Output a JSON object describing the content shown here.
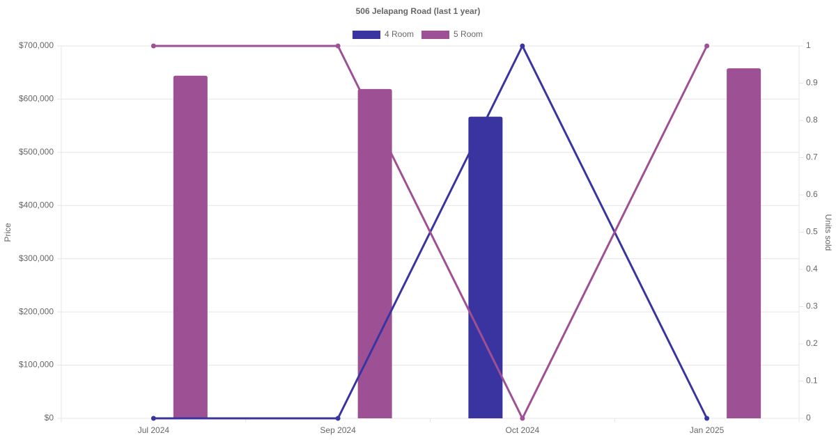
{
  "chart_data": {
    "type": "bar-line",
    "title": "506 Jelapang Road (last 1 year)",
    "categories": [
      "Jul 2024",
      "Sep 2024",
      "Oct 2024",
      "Jan 2025"
    ],
    "series": [
      {
        "name": "4 Room",
        "color": "#3a34a0",
        "values": [
          null,
          null,
          567000,
          null
        ],
        "units_sold": [
          0,
          0,
          1,
          0
        ]
      },
      {
        "name": "5 Room",
        "color": "#9e5094",
        "values": [
          644000,
          619000,
          null,
          658000
        ],
        "units_sold": [
          1,
          1,
          0,
          1
        ]
      }
    ],
    "y_label": "Price",
    "y2_label": "Units sold",
    "ylim": [
      0,
      700000
    ],
    "yticks": [
      {
        "value": 0,
        "label": "$0"
      },
      {
        "value": 100000,
        "label": "$100,000"
      },
      {
        "value": 200000,
        "label": "$200,000"
      },
      {
        "value": 300000,
        "label": "$300,000"
      },
      {
        "value": 400000,
        "label": "$400,000"
      },
      {
        "value": 500000,
        "label": "$500,000"
      },
      {
        "value": 600000,
        "label": "$600,000"
      },
      {
        "value": 700000,
        "label": "$700,000"
      }
    ],
    "y2lim": [
      0,
      1
    ],
    "y2ticks": [
      0,
      0.1,
      0.2,
      0.3,
      0.4,
      0.5,
      0.6,
      0.7,
      0.8,
      0.9,
      1
    ],
    "grid": true,
    "legend": "top"
  }
}
